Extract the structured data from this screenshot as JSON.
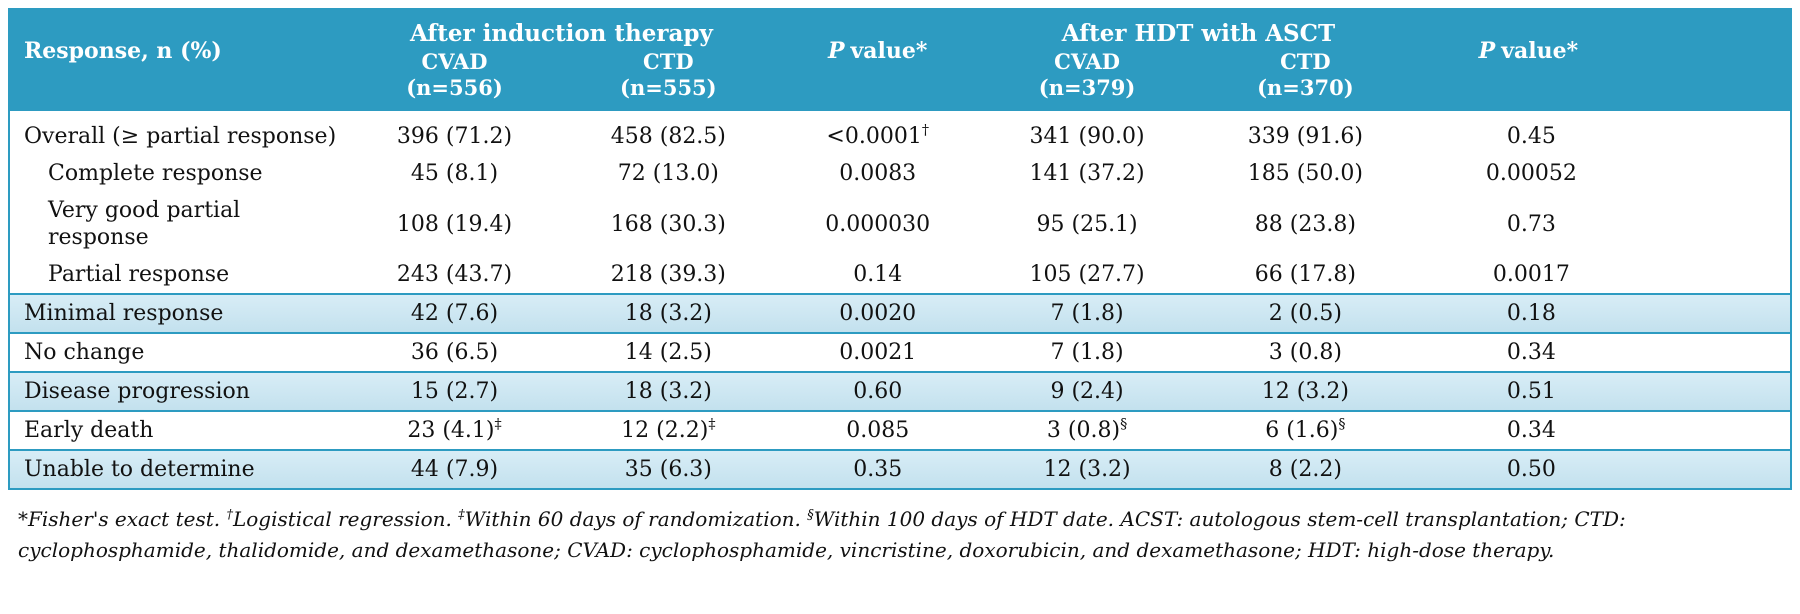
{
  "header": {
    "response_label": "Response, n (%)",
    "group_induction": "After induction therapy",
    "group_hdt": "After HDT with ASCT",
    "p_label_italic": "P",
    "p_label_rest": "value*",
    "columns": [
      {
        "drug": "CVAD",
        "n": "(n=556)"
      },
      {
        "drug": "CTD",
        "n": "(n=555)"
      },
      {
        "drug": "CVAD",
        "n": "(n=379)"
      },
      {
        "drug": "CTD",
        "n": "(n=370)"
      }
    ]
  },
  "rows": [
    {
      "label": "Overall (≥ partial response)",
      "indent": false,
      "shaded": false,
      "separator": false,
      "cells": [
        "396 (71.2)",
        "458 (82.5)",
        "<0.0001†",
        "341 (90.0)",
        "339 (91.6)",
        "0.45"
      ]
    },
    {
      "label": "Complete response",
      "indent": true,
      "shaded": false,
      "separator": false,
      "cells": [
        "45 (8.1)",
        "72 (13.0)",
        "0.0083",
        "141 (37.2)",
        "185 (50.0)",
        "0.00052"
      ]
    },
    {
      "label": "Very good partial response",
      "indent": true,
      "shaded": false,
      "separator": false,
      "cells": [
        "108 (19.4)",
        "168 (30.3)",
        "0.000030",
        "95 (25.1)",
        "88 (23.8)",
        "0.73"
      ]
    },
    {
      "label": "Partial response",
      "indent": true,
      "shaded": false,
      "separator": false,
      "cells": [
        "243 (43.7)",
        "218 (39.3)",
        "0.14",
        "105 (27.7)",
        "66 (17.8)",
        "0.0017"
      ]
    },
    {
      "label": "Minimal response",
      "indent": false,
      "shaded": true,
      "separator": true,
      "cells": [
        "42 (7.6)",
        "18 (3.2)",
        "0.0020",
        "7 (1.8)",
        "2 (0.5)",
        "0.18"
      ]
    },
    {
      "label": "No change",
      "indent": false,
      "shaded": false,
      "separator": true,
      "cells": [
        "36 (6.5)",
        "14 (2.5)",
        "0.0021",
        "7 (1.8)",
        "3 (0.8)",
        "0.34"
      ]
    },
    {
      "label": "Disease progression",
      "indent": false,
      "shaded": true,
      "separator": true,
      "cells": [
        "15 (2.7)",
        "18 (3.2)",
        "0.60",
        "9 (2.4)",
        "12 (3.2)",
        "0.51"
      ]
    },
    {
      "label": "Early death",
      "indent": false,
      "shaded": false,
      "separator": true,
      "cells": [
        "23 (4.1)‡",
        "12 (2.2)‡",
        "0.085",
        "3 (0.8)§",
        "6 (1.6)§",
        "0.34"
      ]
    },
    {
      "label": "Unable to determine",
      "indent": false,
      "shaded": true,
      "separator": true,
      "cells": [
        "44 (7.9)",
        "35 (6.3)",
        "0.35",
        "12 (3.2)",
        "8 (2.2)",
        "0.50"
      ]
    }
  ],
  "footnote": "*Fisher's exact test. †Logistical regression. ‡Within 60 days of randomization. §Within 100 days of HDT date. ACST: autologous stem-cell transplantation; CTD: cyclophosphamide, thalidomide, and dexamethasone; CVAD: cyclophosphamide, vincristine, doxorubicin, and dexamethasone; HDT: high-dose therapy.",
  "colors": {
    "header_bg": "#2d9bc1",
    "shaded_row_top": "#d8edf6",
    "shaded_row_bottom": "#c3e1ee",
    "separator": "#2d9bc1",
    "header_text": "#ffffff",
    "body_text": "#111111"
  }
}
